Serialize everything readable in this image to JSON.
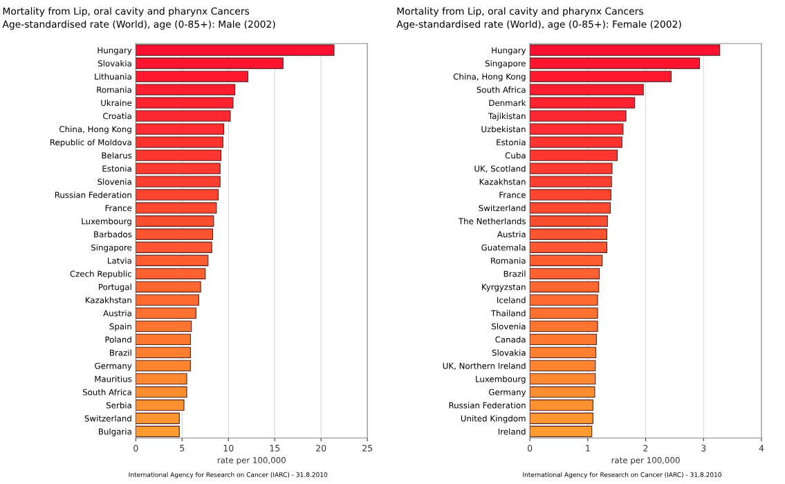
{
  "chart_data": [
    {
      "type": "bar",
      "orientation": "horizontal",
      "title": "Mortality from Lip, oral cavity and pharynx Cancers",
      "subtitle": "Age-standardised rate (World), age (0-85+): Male (2002)",
      "xlabel": "rate per 100,000",
      "categories": [
        "Hungary",
        "Slovakia",
        "Lithuania",
        "Romania",
        "Ukraine",
        "Croatia",
        "China, Hong Kong",
        "Republic of Moldova",
        "Belarus",
        "Estonia",
        "Slovenia",
        "Russian Federation",
        "France",
        "Luxembourg",
        "Barbados",
        "Singapore",
        "Latvia",
        "Czech Republic",
        "Portugal",
        "Kazakhstan",
        "Austria",
        "Spain",
        "Poland",
        "Brazil",
        "Germany",
        "Mauritius",
        "South Africa",
        "Serbia",
        "Switzerland",
        "Bulgaria"
      ],
      "values": [
        21.4,
        15.9,
        12.1,
        10.7,
        10.5,
        10.2,
        9.5,
        9.4,
        9.2,
        9.1,
        9.1,
        8.9,
        8.7,
        8.4,
        8.3,
        8.2,
        7.8,
        7.5,
        7.0,
        6.8,
        6.5,
        6.0,
        5.9,
        5.9,
        5.9,
        5.5,
        5.5,
        5.2,
        4.7,
        4.7
      ],
      "colors": [
        "#ff1030",
        "#ff1530",
        "#ff1a30",
        "#ff1e30",
        "#ff2330",
        "#ff2830",
        "#ff2d30",
        "#ff3230",
        "#ff3730",
        "#ff3b30",
        "#ff4030",
        "#ff4530",
        "#ff4a30",
        "#ff4f30",
        "#ff5430",
        "#ff5830",
        "#ff5d30",
        "#ff6230",
        "#ff6730",
        "#ff6c30",
        "#ff7130",
        "#ff7530",
        "#ff7a30",
        "#ff7f30",
        "#ff8430",
        "#ff8930",
        "#ff8e30",
        "#ff9230",
        "#ff9730",
        "#ff9c30"
      ],
      "xlim": [
        0,
        25
      ],
      "xticks": [
        0,
        5,
        10,
        15,
        20,
        25
      ],
      "grid": "x",
      "annotations": [
        "International Agency for Research on Cancer (IARC) - 31.8.2010"
      ]
    },
    {
      "type": "bar",
      "orientation": "horizontal",
      "title": "Mortality from Lip, oral cavity and pharynx Cancers",
      "subtitle": "Age-standardised rate (World), age (0-85+): Female (2002)",
      "xlabel": "rate per 100,000",
      "categories": [
        "Hungary",
        "Singapore",
        "China, Hong Kong",
        "South Africa",
        "Denmark",
        "Tajikistan",
        "Uzbekistan",
        "Estonia",
        "Cuba",
        "UK, Scotland",
        "Kazakhstan",
        "France",
        "Switzerland",
        "The Netherlands",
        "Austria",
        "Guatemala",
        "Romania",
        "Brazil",
        "Kyrgyzstan",
        "Iceland",
        "Thailand",
        "Slovenia",
        "Canada",
        "Slovakia",
        "UK, Northern Ireland",
        "Luxembourg",
        "Germany",
        "Russian Federation",
        "United Kingdom",
        "Ireland"
      ],
      "values": [
        3.28,
        2.93,
        2.44,
        1.96,
        1.81,
        1.66,
        1.61,
        1.59,
        1.51,
        1.42,
        1.41,
        1.4,
        1.39,
        1.34,
        1.33,
        1.33,
        1.25,
        1.2,
        1.19,
        1.17,
        1.17,
        1.17,
        1.15,
        1.14,
        1.13,
        1.13,
        1.12,
        1.09,
        1.09,
        1.07
      ],
      "colors": [
        "#ff1030",
        "#ff1530",
        "#ff1a30",
        "#ff1e30",
        "#ff2330",
        "#ff2830",
        "#ff2d30",
        "#ff3230",
        "#ff3730",
        "#ff3b30",
        "#ff4030",
        "#ff4530",
        "#ff4a30",
        "#ff4f30",
        "#ff5430",
        "#ff5830",
        "#ff5d30",
        "#ff6230",
        "#ff6730",
        "#ff6c30",
        "#ff7130",
        "#ff7530",
        "#ff7a30",
        "#ff7f30",
        "#ff8430",
        "#ff8930",
        "#ff8e30",
        "#ff9230",
        "#ff9730",
        "#ff9c30"
      ],
      "xlim": [
        0,
        4
      ],
      "xticks": [
        0,
        1,
        2,
        3,
        4
      ],
      "grid": "x",
      "annotations": [
        "International Agency for Research on Cancer (IARC) - 31.8.2010"
      ]
    }
  ]
}
